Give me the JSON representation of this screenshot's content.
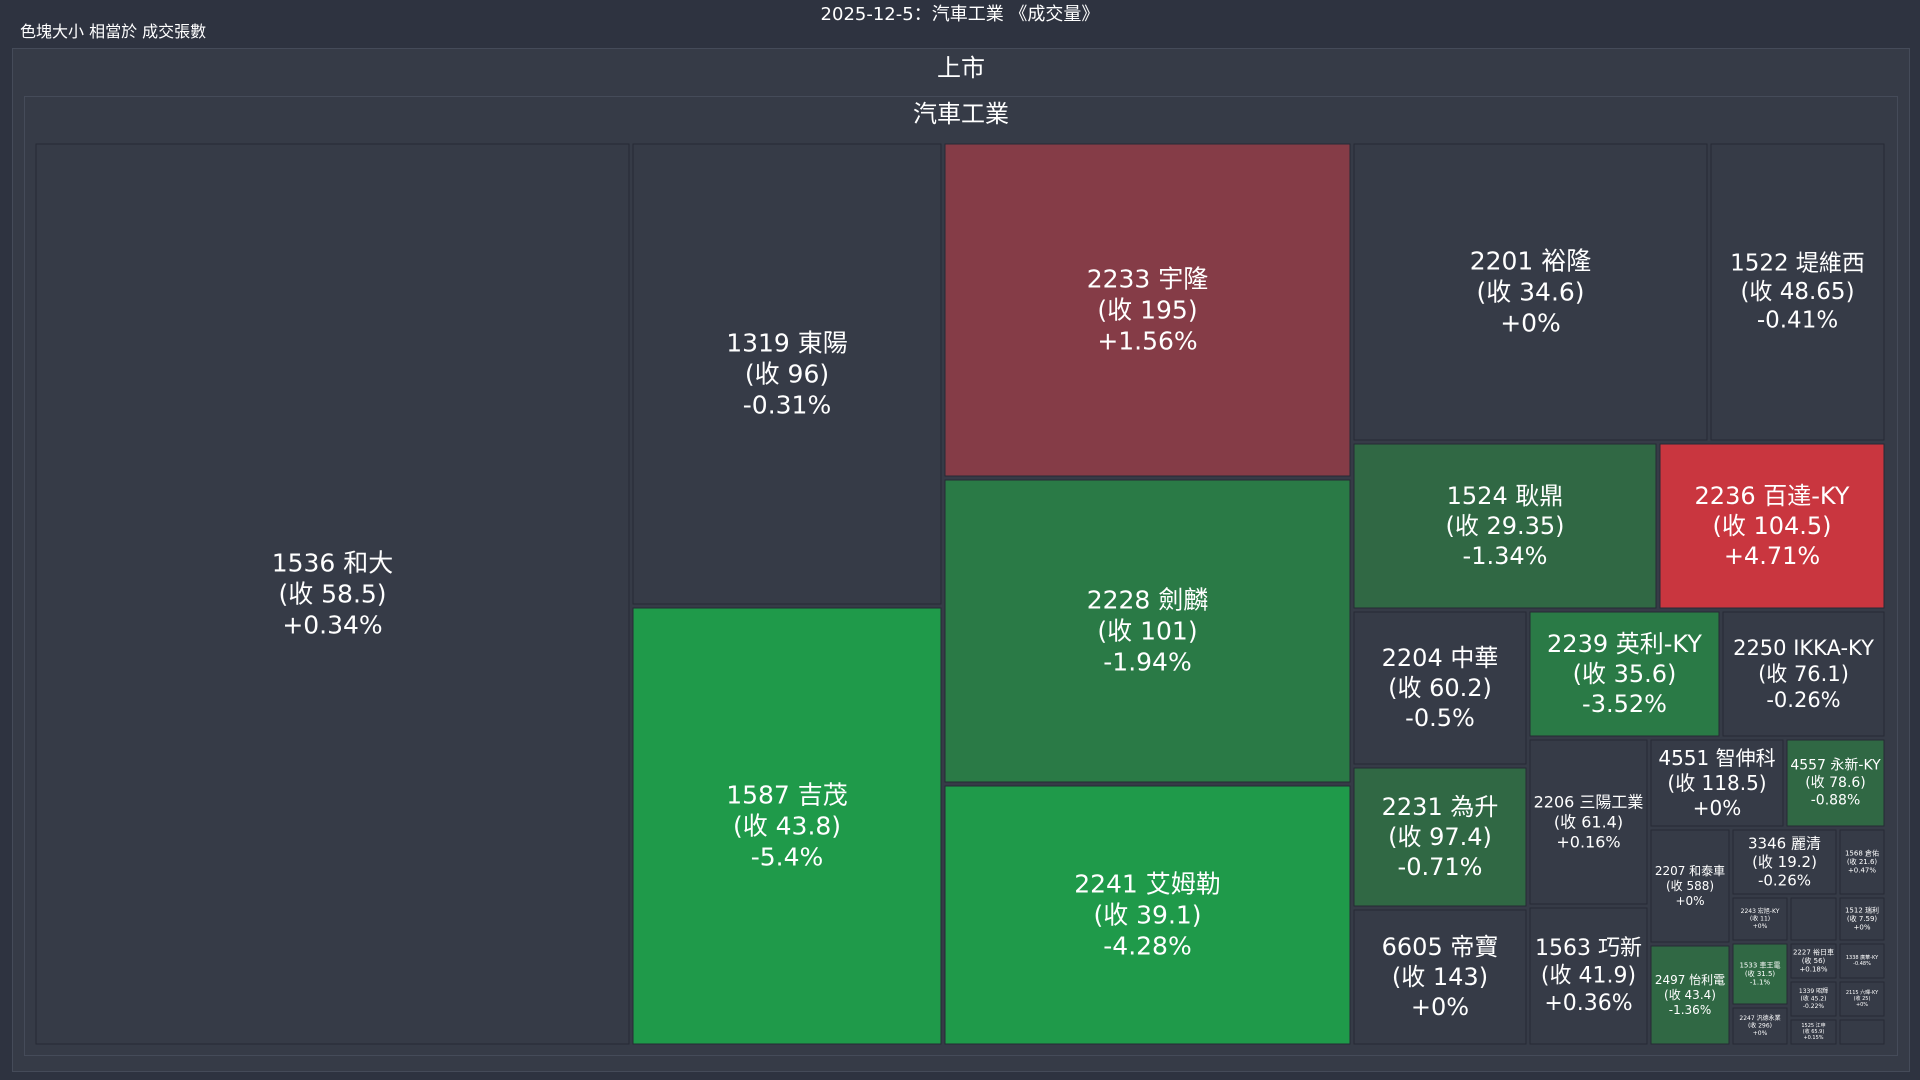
{
  "title": "2025-12-5：汽車工業 《成交量》",
  "subtitle": "色塊大小 相當於 成交張數",
  "market_label": "上市",
  "sector_label": "汽車工業",
  "colors": {
    "background": "#2e3340",
    "neutral": "#363b47",
    "up_mid": "#853c47",
    "up_strong": "#c9363f",
    "down_light": "#306844",
    "down_mid": "#2a7a46",
    "down_strong": "#1f9a4a",
    "text": "#ffffff"
  },
  "chart_data": {
    "type": "treemap",
    "title": "2025-12-5：汽車工業 《成交量》",
    "size_metric": "色塊大小 相當於 成交張數",
    "hierarchy": [
      "上市",
      "汽車工業"
    ],
    "items": [
      {
        "code": "1536",
        "name": "和大",
        "close": "收 58.5",
        "change": "+0.34%",
        "change_pct": 0.34
      },
      {
        "code": "1319",
        "name": "東陽",
        "close": "收 96",
        "change": "-0.31%",
        "change_pct": -0.31
      },
      {
        "code": "1587",
        "name": "吉茂",
        "close": "收 43.8",
        "change": "-5.4%",
        "change_pct": -5.4
      },
      {
        "code": "2233",
        "name": "宇隆",
        "close": "收 195",
        "change": "+1.56%",
        "change_pct": 1.56
      },
      {
        "code": "2228",
        "name": "劍麟",
        "close": "收 101",
        "change": "-1.94%",
        "change_pct": -1.94
      },
      {
        "code": "2241",
        "name": "艾姆勒",
        "close": "收 39.1",
        "change": "-4.28%",
        "change_pct": -4.28
      },
      {
        "code": "2201",
        "name": "裕隆",
        "close": "收 34.6",
        "change": "+0%",
        "change_pct": 0
      },
      {
        "code": "1522",
        "name": "堤維西",
        "close": "收 48.65",
        "change": "-0.41%",
        "change_pct": -0.41
      },
      {
        "code": "1524",
        "name": "耿鼎",
        "close": "收 29.35",
        "change": "-1.34%",
        "change_pct": -1.34
      },
      {
        "code": "2236",
        "name": "百達-KY",
        "close": "收 104.5",
        "change": "+4.71%",
        "change_pct": 4.71
      },
      {
        "code": "2204",
        "name": "中華",
        "close": "收 60.2",
        "change": "-0.5%",
        "change_pct": -0.5
      },
      {
        "code": "2239",
        "name": "英利-KY",
        "close": "收 35.6",
        "change": "-3.52%",
        "change_pct": -3.52
      },
      {
        "code": "2250",
        "name": "IKKA-KY",
        "close": "收 76.1",
        "change": "-0.26%",
        "change_pct": -0.26
      },
      {
        "code": "2231",
        "name": "為升",
        "close": "收 97.4",
        "change": "-0.71%",
        "change_pct": -0.71
      },
      {
        "code": "2206",
        "name": "三陽工業",
        "close": "收 61.4",
        "change": "+0.16%",
        "change_pct": 0.16
      },
      {
        "code": "4551",
        "name": "智伸科",
        "close": "收 118.5",
        "change": "+0%",
        "change_pct": 0
      },
      {
        "code": "4557",
        "name": "永新-KY",
        "close": "收 78.6",
        "change": "-0.88%",
        "change_pct": -0.88
      },
      {
        "code": "6605",
        "name": "帝寶",
        "close": "收 143",
        "change": "+0%",
        "change_pct": 0
      },
      {
        "code": "1563",
        "name": "巧新",
        "close": "收 41.9",
        "change": "+0.36%",
        "change_pct": 0.36
      },
      {
        "code": "2207",
        "name": "和泰車",
        "close": "收 588",
        "change": "+0%",
        "change_pct": 0
      },
      {
        "code": "3346",
        "name": "麗清",
        "close": "收 19.2",
        "change": "-0.26%",
        "change_pct": -0.26
      },
      {
        "code": "1568",
        "name": "倉佑",
        "close": "收 21.6",
        "change": "+0.47%",
        "change_pct": 0.47
      },
      {
        "code": "2243",
        "name": "宏旭-KY",
        "close": "收 11",
        "change": "+0%",
        "change_pct": 0
      },
      {
        "code": "",
        "name": "",
        "close": "",
        "change": "",
        "change_pct": 0
      },
      {
        "code": "1512",
        "name": "瑞利",
        "close": "收 7.59",
        "change": "+0%",
        "change_pct": 0
      },
      {
        "code": "2497",
        "name": "怡利電",
        "close": "收 43.4",
        "change": "-1.36%",
        "change_pct": -1.36
      },
      {
        "code": "1533",
        "name": "車王電",
        "close": "收 31.5",
        "change": "-1.1%",
        "change_pct": -1.1
      },
      {
        "code": "2227",
        "name": "裕日車",
        "close": "收 56",
        "change": "+0.18%",
        "change_pct": 0.18
      },
      {
        "code": "1338",
        "name": "廣華-KY",
        "close": "",
        "change": "-0.48%",
        "change_pct": -0.48
      },
      {
        "code": "2247",
        "name": "汎德永業",
        "close": "收 296",
        "change": "+0%",
        "change_pct": 0
      },
      {
        "code": "1339",
        "name": "昭輝",
        "close": "收 45.2",
        "change": "-0.22%",
        "change_pct": -0.22
      },
      {
        "code": "2115",
        "name": "六暉-KY",
        "close": "收 25",
        "change": "+0%",
        "change_pct": 0
      },
      {
        "code": "1525",
        "name": "江申",
        "close": "收 65.9",
        "change": "+0.15%",
        "change_pct": 0.15
      },
      {
        "code": "",
        "name": "",
        "close": "",
        "change": "",
        "change_pct": 0
      }
    ]
  }
}
